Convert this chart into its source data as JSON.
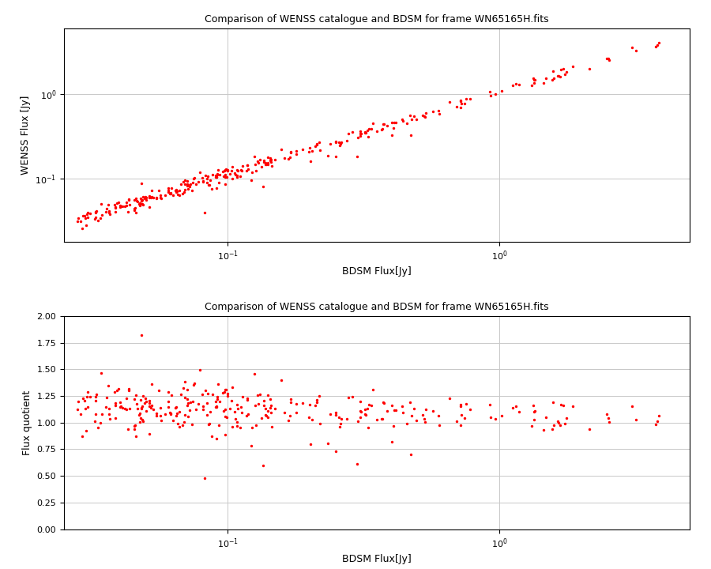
{
  "title": "Comparison of WENSS catalogue and BDSM for frame WN65165H.fits",
  "xlabel1": "BDSM Flux[Jy]",
  "ylabel1": "WENSS Flux [Jy]",
  "xlabel2": "BDSM Flux[Jy]",
  "ylabel2": "Flux quotient",
  "dot_color": "#ff0000",
  "dot_size": 6,
  "ylim2": [
    0.0,
    2.0
  ],
  "yticks2": [
    0.0,
    0.25,
    0.5,
    0.75,
    1.0,
    1.25,
    1.5,
    1.75,
    2.0
  ],
  "background_color": "#ffffff",
  "grid_color": "#c8c8c8",
  "title_fontsize": 9,
  "label_fontsize": 9,
  "tick_fontsize": 8
}
